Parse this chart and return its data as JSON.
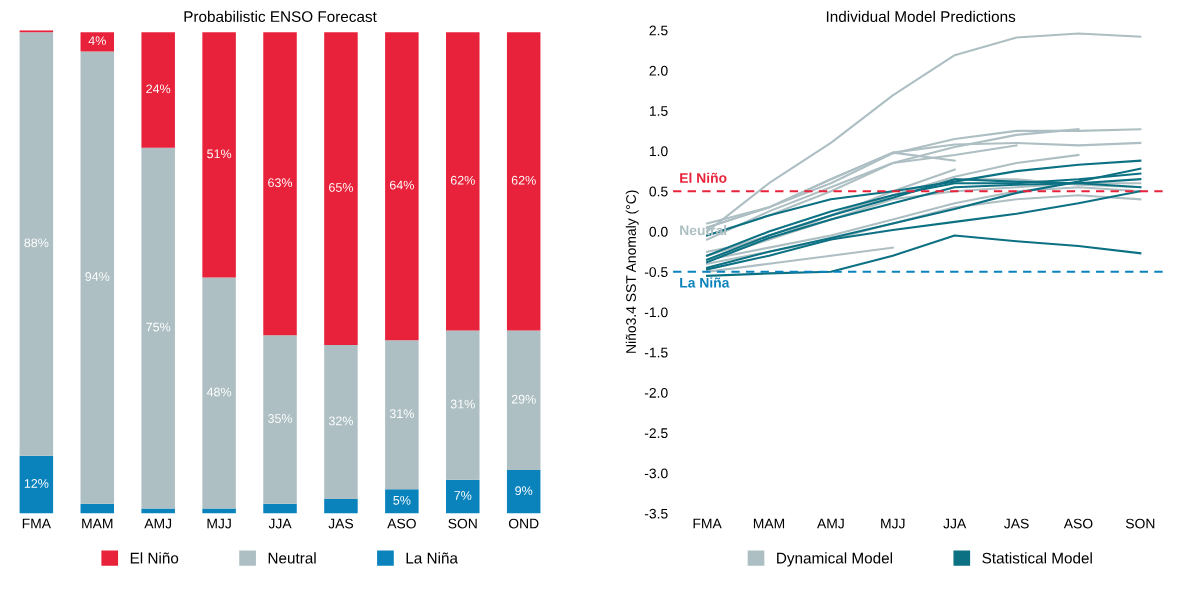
{
  "chart_data": [
    {
      "type": "bar",
      "title": "Probabilistic ENSO Forecast",
      "stacked": true,
      "legend": "bottom",
      "tick_labels": "x",
      "categories": [
        "FMA",
        "MAM",
        "AMJ",
        "MJJ",
        "JJA",
        "JAS",
        "ASO",
        "SON",
        "OND"
      ],
      "series": [
        {
          "name": "La Niña",
          "color": "#0a83bd",
          "values": [
            12,
            2,
            1,
            1,
            2,
            3,
            5,
            7,
            9
          ],
          "value_labels": [
            "12%",
            null,
            null,
            null,
            null,
            null,
            "5%",
            "7%",
            "9%"
          ]
        },
        {
          "name": "Neutral",
          "color": "#adbfc3",
          "values": [
            88,
            94,
            75,
            48,
            35,
            32,
            31,
            31,
            29
          ],
          "value_labels": [
            "88%",
            "94%",
            "75%",
            "48%",
            "35%",
            "32%",
            "31%",
            "31%",
            "29%"
          ]
        },
        {
          "name": "El Niño",
          "color": "#e8223a",
          "values": [
            0.4,
            4,
            24,
            51,
            63,
            65,
            64,
            62,
            62
          ],
          "value_labels": [
            null,
            "4%",
            "24%",
            "51%",
            "63%",
            "65%",
            "64%",
            "62%",
            "62%"
          ]
        }
      ]
    },
    {
      "type": "line",
      "title": "Individual Model Predictions",
      "ylabel": "Niño3.4 SST Anomaly (°C)",
      "legend": "bottom",
      "grid": false,
      "categories": [
        "FMA",
        "MAM",
        "AMJ",
        "MJJ",
        "JJA",
        "JAS",
        "ASO",
        "SON"
      ],
      "ylim": [
        -3.5,
        2.5
      ],
      "yticks": [
        -3.5,
        {
          "value": -3,
          "label": "-3.0"
        },
        -2.5,
        {
          "value": -2,
          "label": "-2.0"
        },
        -1.5,
        {
          "value": -1,
          "label": "-1.0"
        },
        -0.5,
        {
          "value": 0,
          "label": "0.0"
        },
        0.5,
        {
          "value": 1,
          "label": "1.0"
        },
        1.5,
        {
          "value": 2,
          "label": "2.0"
        },
        2.5
      ],
      "ref_lines": [
        {
          "axis": "y",
          "value": 0.5,
          "label": "El Niño",
          "color": "#e8223a",
          "line_style": "dashed"
        },
        {
          "axis": "y",
          "value": -0.5,
          "label": "La Niña",
          "color": "#0a83bd",
          "line_style": "dashed"
        }
      ],
      "annotations": [
        {
          "text": "Neutral",
          "y": 0.0
        }
      ],
      "series": [
        {
          "name": "Dynamical Model",
          "color": "#adbfc3",
          "values": [
            0.0,
            0.6,
            1.1,
            1.69,
            2.19,
            2.41,
            2.46,
            2.42
          ]
        },
        {
          "color": "#adbfc3",
          "values": [
            0.05,
            0.3,
            0.6,
            0.97,
            1.15,
            1.25,
            1.25,
            1.27
          ]
        },
        {
          "color": "#adbfc3",
          "values": [
            -0.1,
            0.25,
            0.55,
            0.85,
            1.05,
            1.2,
            1.27,
            null
          ]
        },
        {
          "color": "#adbfc3",
          "values": [
            0.1,
            0.3,
            0.65,
            0.98,
            1.08,
            1.1,
            1.07,
            1.1
          ]
        },
        {
          "color": "#adbfc3",
          "values": [
            -0.05,
            0.2,
            0.5,
            0.85,
            0.95,
            1.07,
            null,
            null
          ]
        },
        {
          "color": "#adbfc3",
          "values": [
            0.05,
            0.3,
            0.65,
            0.98,
            0.88,
            null,
            null,
            null
          ]
        },
        {
          "color": "#adbfc3",
          "values": [
            -0.3,
            -0.05,
            0.2,
            0.45,
            0.68,
            0.85,
            0.95,
            null
          ]
        },
        {
          "color": "#adbfc3",
          "values": [
            -0.35,
            -0.1,
            0.2,
            0.5,
            0.77,
            null,
            null,
            null
          ]
        },
        {
          "color": "#adbfc3",
          "values": [
            -0.4,
            -0.25,
            -0.1,
            0.1,
            0.3,
            0.4,
            0.45,
            0.4
          ]
        },
        {
          "color": "#adbfc3",
          "values": [
            -0.5,
            -0.4,
            -0.3,
            -0.2,
            null,
            null,
            null,
            null
          ]
        },
        {
          "color": "#adbfc3",
          "values": [
            -0.3,
            -0.05,
            0.2,
            0.45,
            0.65,
            0.65,
            0.58,
            0.55
          ]
        },
        {
          "color": "#adbfc3",
          "values": [
            -0.35,
            -0.2,
            -0.05,
            0.15,
            0.35,
            0.5,
            0.55,
            0.5
          ]
        },
        {
          "color": "#adbfc3",
          "values": [
            -0.25,
            -0.1,
            0.15,
            0.4,
            0.5,
            0.55,
            0.6,
            0.6
          ]
        },
        {
          "name": "Statistical Model",
          "color": "#0c7183",
          "values": [
            -0.05,
            0.2,
            0.4,
            0.5,
            0.62,
            0.75,
            0.83,
            0.88
          ]
        },
        {
          "color": "#0c7183",
          "values": [
            -0.45,
            -0.25,
            -0.08,
            0.1,
            0.28,
            0.48,
            0.62,
            0.78
          ]
        },
        {
          "color": "#0c7183",
          "values": [
            -0.3,
            0.0,
            0.25,
            0.45,
            0.6,
            0.6,
            0.65,
            0.72
          ]
        },
        {
          "color": "#0c7183",
          "values": [
            -0.38,
            -0.08,
            0.15,
            0.35,
            0.55,
            0.58,
            0.6,
            0.65
          ]
        },
        {
          "color": "#0c7183",
          "values": [
            -0.47,
            -0.3,
            -0.1,
            0.02,
            0.12,
            0.22,
            0.35,
            0.5
          ]
        },
        {
          "color": "#0c7183",
          "values": [
            -0.55,
            -0.52,
            -0.5,
            -0.3,
            -0.05,
            -0.12,
            -0.18,
            -0.27
          ]
        },
        {
          "color": "#0c7183",
          "values": [
            -0.35,
            -0.05,
            0.2,
            0.42,
            0.65,
            0.62,
            0.6,
            0.55
          ]
        }
      ]
    }
  ]
}
